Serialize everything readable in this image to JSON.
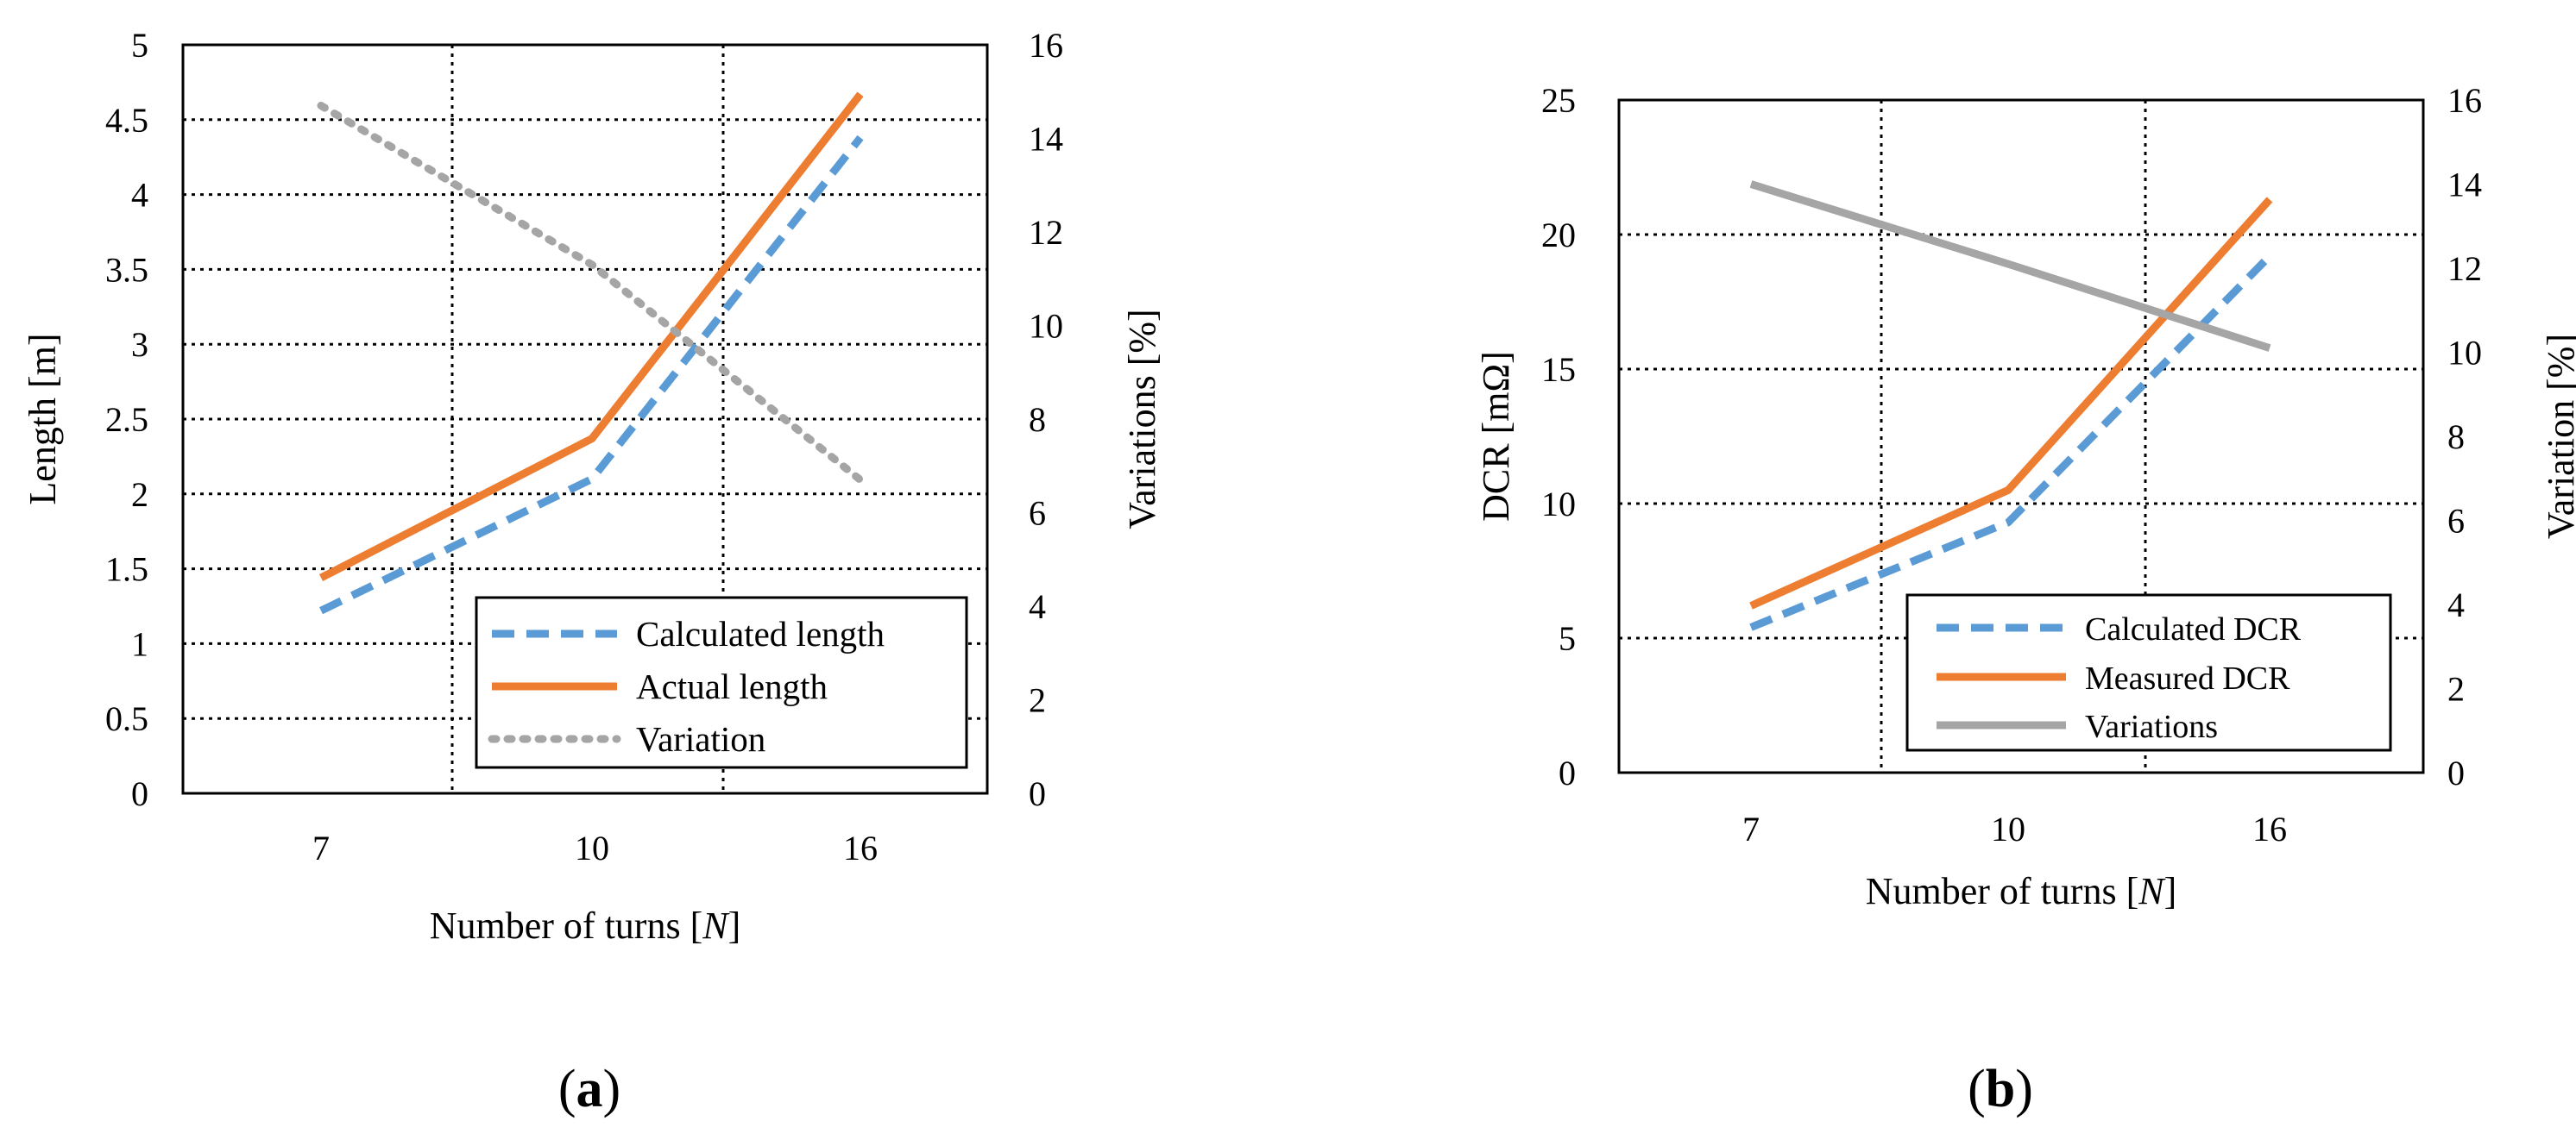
{
  "colors": {
    "calculated": "#5b9bd5",
    "actual": "#ed7d31",
    "variation": "#a5a5a5",
    "axis": "#000000",
    "grid": "#000000"
  },
  "chart_data": [
    {
      "id": "a",
      "type": "line",
      "panel_label": "(a)",
      "panel_letter": "a",
      "categories": [
        "7",
        "10",
        "16"
      ],
      "xlabel_prefix": "Number of turns [",
      "xlabel_var": "N",
      "xlabel_suffix": "]",
      "ylabel": "Length [m]",
      "y2label": "Variations [%]",
      "ylim": [
        0,
        5
      ],
      "y_ticks": [
        "0",
        "0.5",
        "1",
        "1.5",
        "2",
        "2.5",
        "3",
        "3.5",
        "4",
        "4.5",
        "5"
      ],
      "y2lim": [
        0,
        16
      ],
      "y2_ticks": [
        "0",
        "2",
        "4",
        "6",
        "8",
        "10",
        "12",
        "14",
        "16"
      ],
      "grid": true,
      "legend_position": "bottom-right",
      "series": [
        {
          "name": "Calculated length",
          "axis": "left",
          "style": "dashed",
          "color_key": "calculated",
          "values": [
            1.22,
            2.1,
            4.38
          ]
        },
        {
          "name": "Actual length",
          "axis": "left",
          "style": "solid",
          "color_key": "actual",
          "values": [
            1.44,
            2.37,
            4.67
          ]
        },
        {
          "name": "Variation",
          "axis": "right",
          "style": "dotted",
          "color_key": "variation",
          "values": [
            14.7,
            11.3,
            6.7
          ]
        }
      ]
    },
    {
      "id": "b",
      "type": "line",
      "panel_label": "(b)",
      "panel_letter": "b",
      "categories": [
        "7",
        "10",
        "16"
      ],
      "xlabel_prefix": "Number of turns [",
      "xlabel_var": "N",
      "xlabel_suffix": "]",
      "ylabel": "DCR [mΩ]",
      "y2label": "Variation [%]",
      "ylim": [
        0,
        25
      ],
      "y_ticks": [
        "0",
        "5",
        "10",
        "15",
        "20",
        "25"
      ],
      "y2lim": [
        0,
        16
      ],
      "y2_ticks": [
        "0",
        "2",
        "4",
        "6",
        "8",
        "10",
        "12",
        "14",
        "16"
      ],
      "grid": true,
      "legend_position": "bottom-right",
      "series": [
        {
          "name": "Calculated DCR",
          "axis": "left",
          "style": "dashed",
          "color_key": "calculated",
          "values": [
            5.4,
            9.3,
            19.2
          ]
        },
        {
          "name": "Measured DCR",
          "axis": "left",
          "style": "solid",
          "color_key": "actual",
          "values": [
            6.2,
            10.5,
            21.3
          ]
        },
        {
          "name": "Variations",
          "axis": "right",
          "style": "solid",
          "color_key": "variation",
          "values": [
            14.0,
            12.1,
            10.1
          ]
        }
      ]
    }
  ]
}
